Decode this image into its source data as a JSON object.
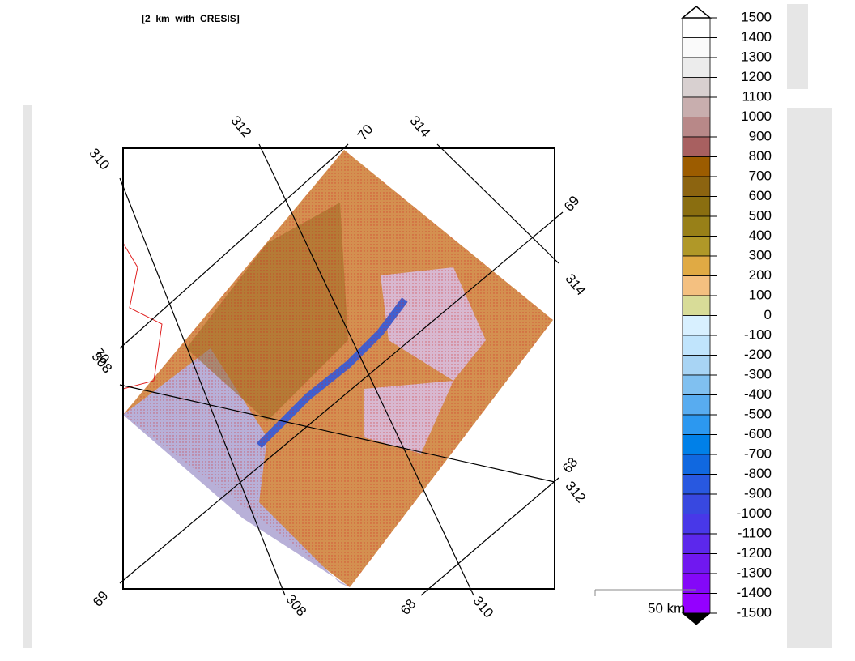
{
  "title": "[2_km_with_CRESIS]",
  "grid_labels": [
    "310",
    "312",
    "70",
    "314",
    "69",
    "314",
    "70",
    "308",
    "68",
    "312",
    "69",
    "308",
    "68",
    "310"
  ],
  "colorbar": {
    "labels": [
      "1500",
      "1400",
      "1300",
      "1200",
      "1100",
      "1000",
      "900",
      "800",
      "700",
      "600",
      "500",
      "400",
      "300",
      "200",
      "100",
      "0",
      "-100",
      "-200",
      "-300",
      "-400",
      "-500",
      "-600",
      "-700",
      "-800",
      "-900",
      "-1000",
      "-1100",
      "-1200",
      "-1300",
      "-1400",
      "-1500"
    ],
    "colors": [
      "#ffffff",
      "#fafafa",
      "#ececec",
      "#d8d0d0",
      "#c8aeae",
      "#b88888",
      "#a86060",
      "#9c5c00",
      "#8c6410",
      "#8a6e10",
      "#988018",
      "#b09828",
      "#e0aa44",
      "#f4c080",
      "#d8dc98",
      "#d8f0ff",
      "#c0e4fc",
      "#a8d4f4",
      "#80c0f0",
      "#58acf0",
      "#2c98f0",
      "#0080e8",
      "#1068e0",
      "#2858e0",
      "#3848e0",
      "#4838e8",
      "#5c28ec",
      "#7018f0",
      "#8408f8",
      "#9400ff"
    ],
    "over_color": "#ffffff",
    "under_color": "#000000"
  },
  "scale_bar": "50 km"
}
